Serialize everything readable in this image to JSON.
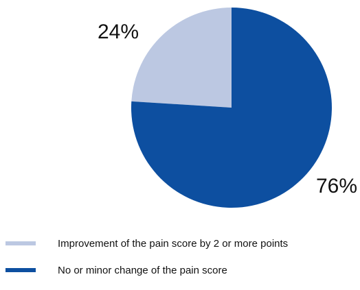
{
  "chart_data": {
    "type": "pie",
    "title": "",
    "slices": [
      {
        "label": "Improvement of the pain score by 2 or more points",
        "value": 24,
        "value_label": "24%",
        "color": "#bcc8e2"
      },
      {
        "label": "No or minor change of the pain score",
        "value": 76,
        "value_label": "76%",
        "color": "#0d4fa0"
      }
    ],
    "start_angle": "12 o'clock",
    "direction": "counter-clockwise for first slice",
    "legend_position": "bottom-left"
  }
}
